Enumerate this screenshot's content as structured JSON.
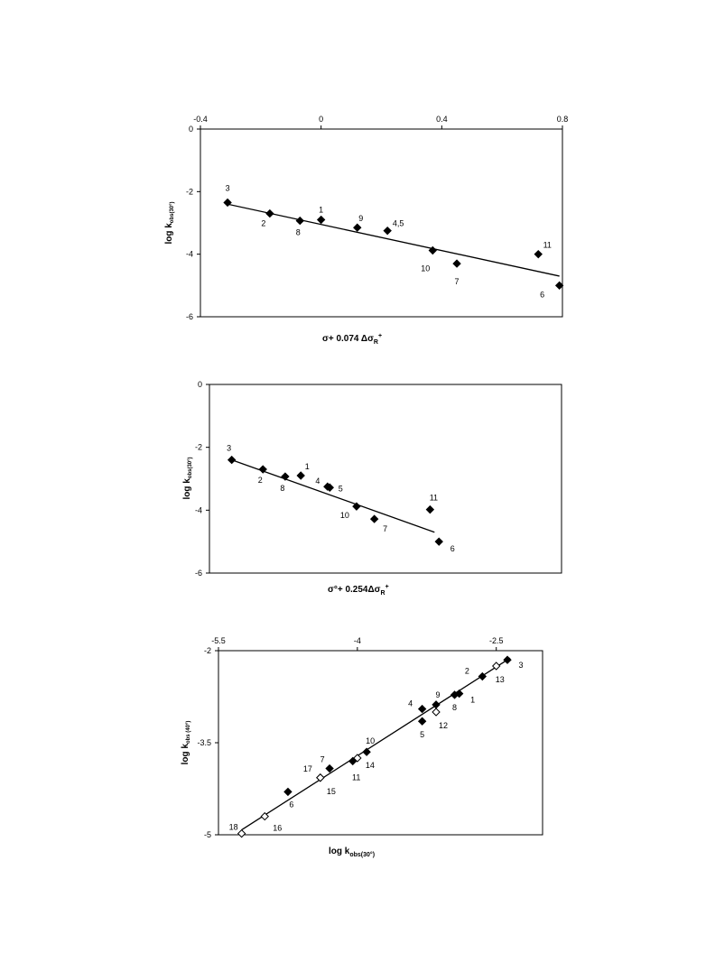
{
  "chart_data": [
    {
      "type": "scatter",
      "xlabel": "σ+ 0.074 Δσ",
      "xlabel_sub": "R",
      "xlabel_sup": "+",
      "ylabel": "log k",
      "ylabel_sub": "obs(30°)",
      "xlim": [
        -0.4,
        0.8
      ],
      "ylim": [
        -6,
        0
      ],
      "x_ticks": [
        -0.4,
        0,
        0.4,
        0.8
      ],
      "x_tick_labels": [
        "-0.4",
        "0",
        "0.4",
        "0.8"
      ],
      "y_ticks": [
        0,
        -2,
        -4,
        -6
      ],
      "y_tick_labels": [
        "0",
        "-2",
        "-4",
        "-6"
      ],
      "grid": false,
      "points": [
        {
          "label": "3",
          "x": -0.31,
          "y": -2.35,
          "filled": true
        },
        {
          "label": "2",
          "x": -0.17,
          "y": -2.7,
          "filled": true
        },
        {
          "label": "8",
          "x": -0.07,
          "y": -2.93,
          "filled": true
        },
        {
          "label": "1",
          "x": 0.0,
          "y": -2.9,
          "filled": true
        },
        {
          "label": "9",
          "x": 0.12,
          "y": -3.15,
          "filled": true
        },
        {
          "label": "4,5",
          "x": 0.22,
          "y": -3.25,
          "filled": true
        },
        {
          "label": "10",
          "x": 0.37,
          "y": -3.88,
          "filled": true
        },
        {
          "label": "7",
          "x": 0.45,
          "y": -4.3,
          "filled": true
        },
        {
          "label": "11",
          "x": 0.72,
          "y": -4.0,
          "filled": true
        },
        {
          "label": "6",
          "x": 0.79,
          "y": -5.0,
          "filled": true
        }
      ],
      "fit_line": {
        "x": [
          -0.31,
          0.79
        ],
        "y": [
          -2.4,
          -4.7
        ]
      }
    },
    {
      "type": "scatter",
      "xlabel": "σ°+ 0.254Δσ",
      "xlabel_sub": "R",
      "xlabel_sup": "+",
      "ylabel": "log k",
      "ylabel_sub": "obs(30°)",
      "xlim": [
        -0.41,
        1.17
      ],
      "ylim": [
        -6,
        0
      ],
      "x_ticks": [],
      "x_tick_labels": [],
      "y_ticks": [
        0,
        -2,
        -4,
        -6
      ],
      "y_tick_labels": [
        "0",
        "-2",
        "-4",
        "-6"
      ],
      "grid": false,
      "points": [
        {
          "label": "3",
          "x": -0.31,
          "y": -2.4,
          "filled": true
        },
        {
          "label": "2",
          "x": -0.17,
          "y": -2.7,
          "filled": true
        },
        {
          "label": "8",
          "x": -0.07,
          "y": -2.93,
          "filled": true
        },
        {
          "label": "1",
          "x": 0.0,
          "y": -2.9,
          "filled": true
        },
        {
          "label": "4",
          "x": 0.12,
          "y": -3.25,
          "filled": true
        },
        {
          "label": "5",
          "x": 0.13,
          "y": -3.28,
          "filled": true
        },
        {
          "label": "10",
          "x": 0.25,
          "y": -3.88,
          "filled": true
        },
        {
          "label": "7",
          "x": 0.33,
          "y": -4.28,
          "filled": true
        },
        {
          "label": "11",
          "x": 0.58,
          "y": -3.98,
          "filled": true
        },
        {
          "label": "6",
          "x": 0.62,
          "y": -5.0,
          "filled": true
        }
      ],
      "fit_line": {
        "x": [
          -0.31,
          0.6
        ],
        "y": [
          -2.4,
          -4.7
        ]
      }
    },
    {
      "type": "scatter",
      "xlabel": "log k",
      "xlabel_sub": "obs(30°)",
      "ylabel": "log k",
      "ylabel_sub": "obs (40°)",
      "xlim": [
        -5.5,
        -2.0
      ],
      "ylim": [
        -5,
        -2
      ],
      "x_ticks": [
        -5.5,
        -4,
        -2.5
      ],
      "x_tick_labels": [
        "-5.5",
        "-4",
        "-2.5"
      ],
      "y_ticks": [
        -2,
        -3.5,
        -5
      ],
      "y_tick_labels": [
        "-2",
        "-3.5",
        "-5"
      ],
      "grid": false,
      "points": [
        {
          "label": "3",
          "x": -2.38,
          "y": -2.15,
          "filled": true
        },
        {
          "label": "13",
          "x": -2.5,
          "y": -2.25,
          "filled": false
        },
        {
          "label": "2",
          "x": -2.65,
          "y": -2.42,
          "filled": true
        },
        {
          "label": "1",
          "x": -2.9,
          "y": -2.7,
          "filled": true
        },
        {
          "label": "8",
          "x": -2.95,
          "y": -2.72,
          "filled": true
        },
        {
          "label": "9",
          "x": -3.15,
          "y": -2.88,
          "filled": true
        },
        {
          "label": "4",
          "x": -3.3,
          "y": -2.95,
          "filled": true
        },
        {
          "label": "12",
          "x": -3.15,
          "y": -3.0,
          "filled": false
        },
        {
          "label": "5",
          "x": -3.3,
          "y": -3.15,
          "filled": true
        },
        {
          "label": "10",
          "x": -3.9,
          "y": -3.65,
          "filled": true
        },
        {
          "label": "14",
          "x": -4.0,
          "y": -3.75,
          "filled": false
        },
        {
          "label": "11",
          "x": -4.05,
          "y": -3.8,
          "filled": true
        },
        {
          "label": "7",
          "x": -4.3,
          "y": -3.92,
          "filled": true
        },
        {
          "label": "17",
          "x": -4.4,
          "y": -4.07,
          "filled": false
        },
        {
          "label": "15",
          "x": -4.4,
          "y": -4.07,
          "filled": false
        },
        {
          "label": "6",
          "x": -4.75,
          "y": -4.3,
          "filled": true
        },
        {
          "label": "16",
          "x": -5.0,
          "y": -4.7,
          "filled": false
        },
        {
          "label": "18",
          "x": -5.25,
          "y": -4.98,
          "filled": false
        }
      ],
      "fit_line": {
        "x": [
          -5.25,
          -2.35
        ],
        "y": [
          -4.92,
          -2.12
        ]
      }
    }
  ]
}
